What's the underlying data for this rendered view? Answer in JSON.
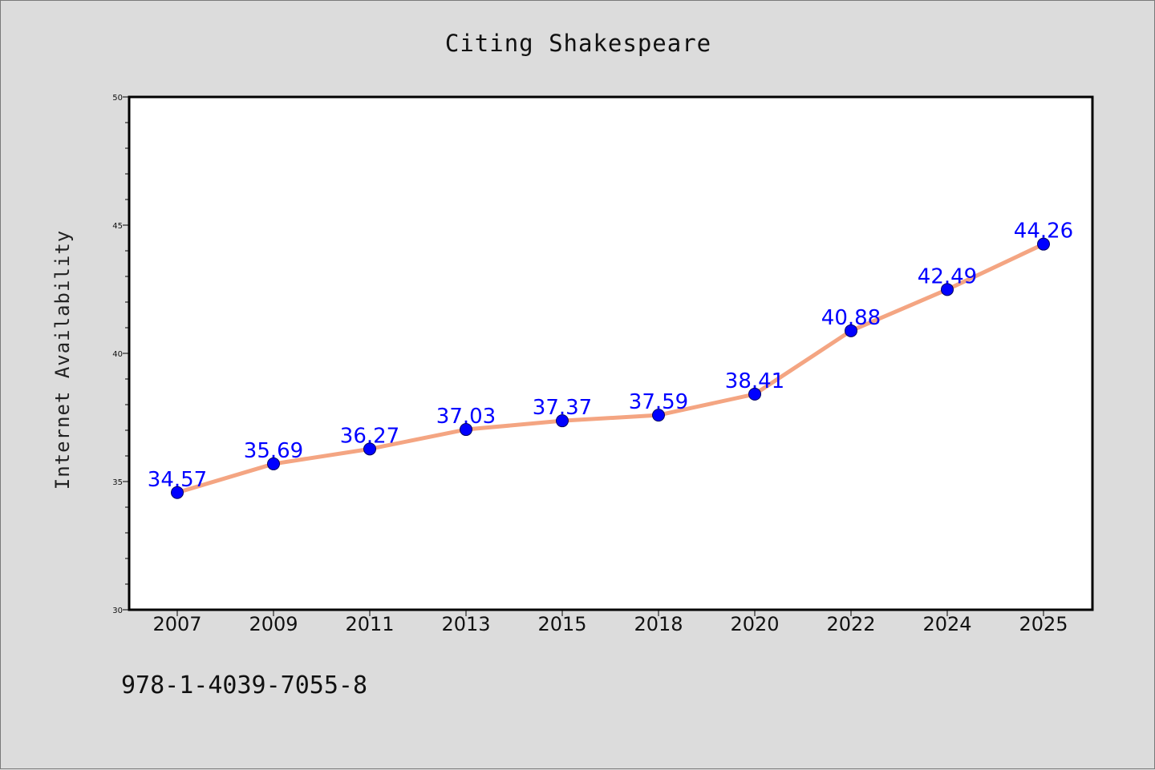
{
  "chart_data": {
    "type": "line",
    "title": "Citing Shakespeare",
    "xlabel": "",
    "ylabel": "Internet Availability",
    "categories": [
      "2007",
      "2009",
      "2011",
      "2013",
      "2015",
      "2018",
      "2020",
      "2022",
      "2024",
      "2025"
    ],
    "series": [
      {
        "values": [
          34.57,
          35.69,
          36.27,
          37.03,
          37.37,
          37.59,
          38.41,
          40.88,
          42.49,
          44.26
        ],
        "line_color": "#f4a582",
        "marker_color": "#0000ff",
        "label_color": "#0000ff"
      }
    ],
    "data_labels": [
      "34.57",
      "35.69",
      "36.27",
      "37.03",
      "37.37",
      "37.59",
      "38.41",
      "40.88",
      "42.49",
      "44.26"
    ],
    "ylim": [
      30,
      50
    ],
    "yticks": [
      "30",
      "35",
      "40",
      "45",
      "50"
    ],
    "grid": false,
    "legend": "none"
  },
  "footer": {
    "isbn": "978-1-4039-7055-8"
  },
  "colors": {
    "background": "#dcdcdc",
    "plot_background": "#ffffff",
    "line": "#f4a582",
    "marker": "#0000ff",
    "data_label": "#0000ff"
  }
}
